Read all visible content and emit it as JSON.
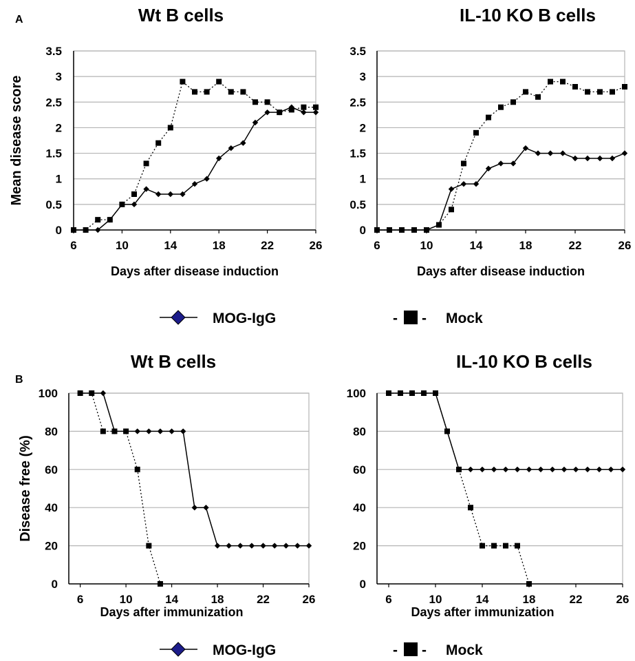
{
  "panel_labels": {
    "a": "A",
    "b": "B"
  },
  "legend": {
    "mog_label": "MOG-IgG",
    "mock_label": "Mock",
    "mock_dash_left": "-",
    "mock_dash_right": "-"
  },
  "colors": {
    "mog_marker": "#1c1c8a",
    "mock_marker": "#000000",
    "line": "#000000",
    "grid": "#b4b4b4"
  },
  "chart_data": [
    {
      "id": "a-wt",
      "type": "line",
      "title": "Wt B cells",
      "xlabel": "Days after disease induction",
      "ylabel": "Mean disease score",
      "xlim": [
        6,
        26
      ],
      "ylim": [
        0,
        3.5
      ],
      "x_ticks": [
        "6",
        "10",
        "14",
        "18",
        "22",
        "26"
      ],
      "y_ticks": [
        "0",
        "0.5",
        "1",
        "1.5",
        "2",
        "2.5",
        "3",
        "3.5"
      ],
      "grid": true,
      "series": [
        {
          "name": "MOG-IgG",
          "marker": "diamond",
          "line": "solid",
          "x": [
            6,
            7,
            8,
            9,
            10,
            11,
            12,
            13,
            14,
            15,
            16,
            17,
            18,
            19,
            20,
            21,
            22,
            23,
            24,
            25,
            26
          ],
          "y": [
            0,
            0,
            0,
            0.2,
            0.5,
            0.5,
            0.8,
            0.7,
            0.7,
            0.7,
            0.9,
            1.0,
            1.4,
            1.6,
            1.7,
            2.1,
            2.3,
            2.3,
            2.4,
            2.3,
            2.3
          ]
        },
        {
          "name": "Mock",
          "marker": "square",
          "line": "dotted",
          "x": [
            6,
            7,
            8,
            9,
            10,
            11,
            12,
            13,
            14,
            15,
            16,
            17,
            18,
            19,
            20,
            21,
            22,
            23,
            24,
            25,
            26
          ],
          "y": [
            0,
            0,
            0.2,
            0.2,
            0.5,
            0.7,
            1.3,
            1.7,
            2.0,
            2.9,
            2.7,
            2.7,
            2.9,
            2.7,
            2.7,
            2.5,
            2.5,
            2.3,
            2.35,
            2.4,
            2.4
          ]
        }
      ]
    },
    {
      "id": "a-ko",
      "type": "line",
      "title": "IL-10 KO B cells",
      "xlabel": "Days after disease induction",
      "ylabel": "",
      "xlim": [
        6,
        26
      ],
      "ylim": [
        0,
        3.5
      ],
      "x_ticks": [
        "6",
        "10",
        "14",
        "18",
        "22",
        "26"
      ],
      "y_ticks": [
        "0",
        "0.5",
        "1",
        "1.5",
        "2",
        "2.5",
        "3",
        "3.5"
      ],
      "grid": true,
      "series": [
        {
          "name": "MOG-IgG",
          "marker": "diamond",
          "line": "solid",
          "x": [
            6,
            7,
            8,
            9,
            10,
            11,
            12,
            13,
            14,
            15,
            16,
            17,
            18,
            19,
            20,
            21,
            22,
            23,
            24,
            25,
            26
          ],
          "y": [
            0,
            0,
            0,
            0,
            0,
            0.1,
            0.8,
            0.9,
            0.9,
            1.2,
            1.3,
            1.3,
            1.6,
            1.5,
            1.5,
            1.5,
            1.4,
            1.4,
            1.4,
            1.4,
            1.5
          ]
        },
        {
          "name": "Mock",
          "marker": "square",
          "line": "dotted",
          "x": [
            6,
            7,
            8,
            9,
            10,
            11,
            12,
            13,
            14,
            15,
            16,
            17,
            18,
            19,
            20,
            21,
            22,
            23,
            24,
            25,
            26
          ],
          "y": [
            0,
            0,
            0,
            0,
            0,
            0.1,
            0.4,
            1.3,
            1.9,
            2.2,
            2.4,
            2.5,
            2.7,
            2.6,
            2.9,
            2.9,
            2.8,
            2.7,
            2.7,
            2.7,
            2.8
          ]
        }
      ]
    },
    {
      "id": "b-wt",
      "type": "line",
      "title": "Wt B cells",
      "xlabel": "Days after immunization",
      "ylabel": "Disease free (%)",
      "xlim": [
        5,
        26
      ],
      "ylim": [
        0,
        100
      ],
      "x_ticks": [
        "6",
        "10",
        "14",
        "18",
        "22",
        "26"
      ],
      "x_tick_values": [
        6,
        10,
        14,
        18,
        22,
        26
      ],
      "y_ticks": [
        "0",
        "20",
        "40",
        "60",
        "80",
        "100"
      ],
      "grid": true,
      "series": [
        {
          "name": "MOG-IgG",
          "marker": "diamond",
          "line": "solid",
          "x": [
            6,
            7,
            8,
            9,
            10,
            11,
            12,
            13,
            14,
            15,
            16,
            17,
            18,
            19,
            20,
            21,
            22,
            23,
            24,
            25,
            26
          ],
          "y": [
            100,
            100,
            100,
            80,
            80,
            80,
            80,
            80,
            80,
            80,
            40,
            40,
            20,
            20,
            20,
            20,
            20,
            20,
            20,
            20,
            20
          ]
        },
        {
          "name": "Mock",
          "marker": "square",
          "line": "dotted",
          "x": [
            6,
            7,
            8,
            9,
            10,
            11,
            12,
            13
          ],
          "y": [
            100,
            100,
            80,
            80,
            80,
            60,
            20,
            0
          ]
        }
      ]
    },
    {
      "id": "b-ko",
      "type": "line",
      "title": "IL-10 KO B cells",
      "xlabel": "Days after immunization",
      "ylabel": "",
      "xlim": [
        5,
        26
      ],
      "ylim": [
        0,
        100
      ],
      "x_ticks": [
        "6",
        "10",
        "14",
        "18",
        "22",
        "26"
      ],
      "x_tick_values": [
        6,
        10,
        14,
        18,
        22,
        26
      ],
      "y_ticks": [
        "0",
        "20",
        "40",
        "60",
        "80",
        "100"
      ],
      "grid": true,
      "series": [
        {
          "name": "MOG-IgG",
          "marker": "diamond",
          "line": "solid",
          "x": [
            6,
            7,
            8,
            9,
            10,
            11,
            12,
            13,
            14,
            15,
            16,
            17,
            18,
            19,
            20,
            21,
            22,
            23,
            24,
            25,
            26
          ],
          "y": [
            100,
            100,
            100,
            100,
            100,
            80,
            60,
            60,
            60,
            60,
            60,
            60,
            60,
            60,
            60,
            60,
            60,
            60,
            60,
            60,
            60
          ]
        },
        {
          "name": "Mock",
          "marker": "square",
          "line": "dotted",
          "x": [
            6,
            7,
            8,
            9,
            10,
            11,
            12,
            13,
            14,
            15,
            16,
            17,
            18
          ],
          "y": [
            100,
            100,
            100,
            100,
            100,
            80,
            60,
            40,
            20,
            20,
            20,
            20,
            0
          ]
        }
      ]
    }
  ]
}
